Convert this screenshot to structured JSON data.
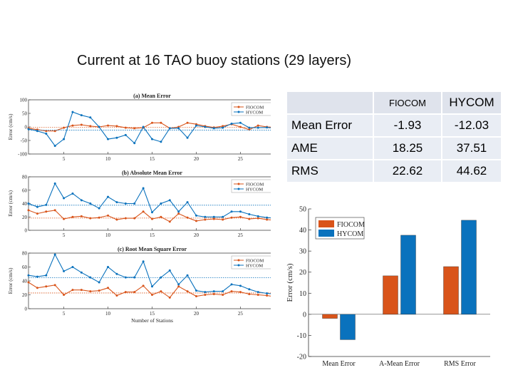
{
  "slide_title": "Current at 16 TAO buoy stations (29 layers)",
  "colors": {
    "fiocom": "#d9541a",
    "hycom": "#0a72bd"
  },
  "table": {
    "headers": [
      "",
      "FIOCOM",
      "HYCOM"
    ],
    "rows": [
      {
        "label": "Mean Error",
        "fiocom": "-1.93",
        "hycom": "-12.03"
      },
      {
        "label": "AME",
        "fiocom": "18.25",
        "hycom": "37.51"
      },
      {
        "label": "RMS",
        "fiocom": "22.62",
        "hycom": "44.62"
      }
    ]
  },
  "chart_data": [
    {
      "type": "line",
      "title": "(a) Mean Error",
      "xlabel": "",
      "ylabel": "Error (cm/s)",
      "ylim": [
        -100,
        100
      ],
      "yticks": [
        -100,
        -50,
        0,
        50,
        100
      ],
      "xlim": [
        1,
        29
      ],
      "xticks": [
        5,
        10,
        15,
        20,
        25
      ],
      "x": [
        1,
        2,
        3,
        4,
        5,
        6,
        7,
        8,
        9,
        10,
        11,
        12,
        13,
        14,
        15,
        16,
        17,
        18,
        19,
        20,
        21,
        22,
        23,
        24,
        25,
        26,
        27,
        28,
        29
      ],
      "series": [
        {
          "name": "FIOCOM",
          "values": [
            -5,
            -10,
            -15,
            -15,
            -3,
            5,
            8,
            3,
            0,
            5,
            3,
            -3,
            -5,
            -3,
            15,
            15,
            -5,
            0,
            15,
            10,
            3,
            -2,
            3,
            10,
            0,
            -10,
            5,
            0,
            -2
          ],
          "mean": -1.93
        },
        {
          "name": "HYCOM",
          "values": [
            -8,
            -15,
            -25,
            -70,
            -45,
            55,
            43,
            35,
            0,
            -45,
            -40,
            -30,
            -60,
            0,
            -45,
            -55,
            -5,
            -5,
            -40,
            5,
            0,
            -5,
            -3,
            12,
            15,
            -3,
            -3,
            -2,
            -5
          ],
          "mean": -12.03
        }
      ],
      "legend": "top-right",
      "grid": false
    },
    {
      "type": "line",
      "title": "(b) Absolute Mean Error",
      "xlabel": "",
      "ylabel": "Error (cm/s)",
      "ylim": [
        0,
        80
      ],
      "yticks": [
        0,
        20,
        40,
        60,
        80
      ],
      "xlim": [
        1,
        29
      ],
      "xticks": [
        5,
        10,
        15,
        20,
        25
      ],
      "x": [
        1,
        2,
        3,
        4,
        5,
        6,
        7,
        8,
        9,
        10,
        11,
        12,
        13,
        14,
        15,
        16,
        17,
        18,
        19,
        20,
        21,
        22,
        23,
        24,
        25,
        26,
        27,
        28,
        29
      ],
      "series": [
        {
          "name": "FIOCOM",
          "values": [
            30,
            25,
            28,
            30,
            17,
            20,
            21,
            18,
            19,
            22,
            16,
            18,
            18,
            28,
            17,
            20,
            13,
            25,
            19,
            14,
            16,
            17,
            16,
            19,
            20,
            17,
            18,
            16,
            15
          ],
          "mean": 18.25
        },
        {
          "name": "HYCOM",
          "values": [
            40,
            35,
            38,
            70,
            48,
            55,
            45,
            40,
            33,
            50,
            42,
            40,
            40,
            63,
            27,
            40,
            45,
            28,
            42,
            22,
            20,
            20,
            20,
            28,
            28,
            24,
            21,
            19,
            18
          ],
          "mean": 37.51
        }
      ],
      "legend": "top-right",
      "grid": false
    },
    {
      "type": "line",
      "title": "(c) Root Mean Square  Error",
      "xlabel": "Number of Stations",
      "ylabel": "Error (cm/s)",
      "ylim": [
        0,
        80
      ],
      "yticks": [
        0,
        20,
        40,
        60,
        80
      ],
      "xlim": [
        1,
        29
      ],
      "xticks": [
        5,
        10,
        15,
        20,
        25
      ],
      "x": [
        1,
        2,
        3,
        4,
        5,
        6,
        7,
        8,
        9,
        10,
        11,
        12,
        13,
        14,
        15,
        16,
        17,
        18,
        19,
        20,
        21,
        22,
        23,
        24,
        25,
        26,
        27,
        28,
        29
      ],
      "series": [
        {
          "name": "FIOCOM",
          "values": [
            38,
            30,
            32,
            34,
            20,
            27,
            27,
            25,
            26,
            30,
            19,
            24,
            24,
            33,
            20,
            25,
            16,
            32,
            25,
            18,
            20,
            21,
            20,
            25,
            24,
            21,
            20,
            19,
            17
          ],
          "mean": 22.62
        },
        {
          "name": "HYCOM",
          "values": [
            48,
            46,
            48,
            78,
            54,
            60,
            52,
            45,
            38,
            60,
            50,
            45,
            45,
            68,
            32,
            45,
            55,
            35,
            48,
            26,
            24,
            25,
            25,
            35,
            33,
            28,
            24,
            22,
            21
          ],
          "mean": 44.62
        }
      ],
      "legend": "top-right",
      "grid": false
    },
    {
      "type": "bar",
      "title": "",
      "xlabel": "",
      "ylabel": "Error (cm/s)",
      "ylim": [
        -20,
        50
      ],
      "yticks": [
        -20,
        -10,
        0,
        10,
        20,
        30,
        40,
        50
      ],
      "categories": [
        "Mean Error",
        "A-Mean Error",
        "RMS Error"
      ],
      "series": [
        {
          "name": "FIOCOM",
          "values": [
            -1.93,
            18.25,
            22.62
          ]
        },
        {
          "name": "HYCOM",
          "values": [
            -12.03,
            37.51,
            44.62
          ]
        }
      ],
      "legend": "top-left",
      "grid": false
    }
  ]
}
